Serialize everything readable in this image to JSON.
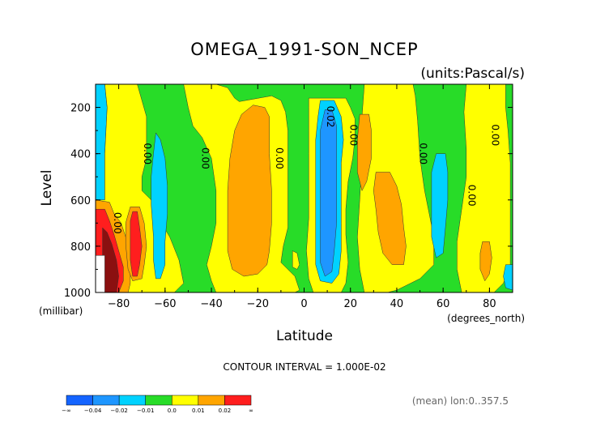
{
  "chart_data": {
    "type": "contour",
    "title": "OMEGA_1991-SON_NCEP",
    "units_label": "(units:Pascal/s)",
    "xlabel": "Latitude",
    "ylabel": "Level",
    "x_unit_label": "(degrees_north)",
    "y_unit_label": "(millibar)",
    "xlim": [
      -90,
      90
    ],
    "ylim": [
      1000,
      100
    ],
    "x_ticks": [
      -80,
      -60,
      -40,
      -20,
      0,
      20,
      40,
      60,
      80
    ],
    "x_tick_labels": [
      "−80",
      "−60",
      "−40",
      "−20",
      "0",
      "20",
      "40",
      "60",
      "80"
    ],
    "y_ticks": [
      200,
      400,
      600,
      800,
      1000
    ],
    "y_tick_labels": [
      "200",
      "400",
      "600",
      "800",
      "1000"
    ],
    "contour_interval_text": "CONTOUR INTERVAL = 1.000E-02",
    "footer_text": "(mean) lon:0..357.5",
    "colorbar": {
      "levels": [
        "−∞",
        "−0.04",
        "−0.02",
        "−0.01",
        "0.0",
        "0.01",
        "0.02",
        "∞"
      ],
      "colors": [
        "#1464ff",
        "#1e96ff",
        "#00d2ff",
        "#28dc28",
        "#ffff00",
        "#ffa500",
        "#ff1e1e"
      ]
    },
    "contour_labels": [
      {
        "text": "0.00",
        "lat": -69,
        "lev": 400
      },
      {
        "text": "0.00",
        "lat": -44,
        "lev": 420
      },
      {
        "text": "0.00",
        "lat": -12,
        "lev": 420
      },
      {
        "text": "0.02",
        "lat": 10,
        "lev": 240
      },
      {
        "text": "0.00",
        "lat": 20,
        "lev": 320
      },
      {
        "text": "0.00",
        "lat": 50,
        "lev": 400
      },
      {
        "text": "0.00",
        "lat": 71,
        "lev": 580
      },
      {
        "text": "0.00",
        "lat": 81,
        "lev": 320
      },
      {
        "text": "0.00",
        "lat": -82,
        "lev": 700
      }
    ],
    "regions": [
      {
        "color": "#28dc28",
        "pts": [
          [
            -90,
            100
          ],
          [
            90,
            100
          ],
          [
            90,
            1000
          ],
          [
            -90,
            1000
          ]
        ]
      },
      {
        "color": "#00d2ff",
        "pts": [
          [
            -90,
            100
          ],
          [
            -86,
            100
          ],
          [
            -85,
            200
          ],
          [
            -86,
            400
          ],
          [
            -86,
            600
          ],
          [
            -90,
            600
          ]
        ]
      },
      {
        "color": "#ffff00",
        "pts": [
          [
            -86,
            100
          ],
          [
            -72,
            100
          ],
          [
            -68,
            240
          ],
          [
            -68,
            420
          ],
          [
            -70,
            500
          ],
          [
            -70,
            560
          ],
          [
            -66,
            600
          ],
          [
            -64,
            660
          ],
          [
            -58,
            760
          ],
          [
            -54,
            860
          ],
          [
            -52,
            960
          ],
          [
            -56,
            1000
          ],
          [
            -90,
            1000
          ],
          [
            -90,
            600
          ],
          [
            -86,
            600
          ],
          [
            -86,
            400
          ],
          [
            -85,
            200
          ]
        ]
      },
      {
        "color": "#00d2ff",
        "pts": [
          [
            -64,
            310
          ],
          [
            -62,
            340
          ],
          [
            -60,
            420
          ],
          [
            -59,
            540
          ],
          [
            -59,
            660
          ],
          [
            -60,
            780
          ],
          [
            -60,
            880
          ],
          [
            -62,
            940
          ],
          [
            -64,
            940
          ],
          [
            -65,
            860
          ],
          [
            -65,
            760
          ],
          [
            -66,
            620
          ],
          [
            -66,
            500
          ],
          [
            -65,
            400
          ]
        ]
      },
      {
        "color": "#ffa500",
        "pts": [
          [
            -90,
            600
          ],
          [
            -84,
            610
          ],
          [
            -82,
            660
          ],
          [
            -79,
            700
          ],
          [
            -77,
            760
          ],
          [
            -76,
            830
          ],
          [
            -75,
            880
          ],
          [
            -75,
            960
          ],
          [
            -76,
            1000
          ],
          [
            -90,
            1000
          ]
        ]
      },
      {
        "color": "#ff1e1e",
        "pts": [
          [
            -90,
            640
          ],
          [
            -86,
            640
          ],
          [
            -84,
            690
          ],
          [
            -82,
            750
          ],
          [
            -80,
            820
          ],
          [
            -78,
            890
          ],
          [
            -78,
            950
          ],
          [
            -80,
            1000
          ],
          [
            -90,
            1000
          ]
        ]
      },
      {
        "color": "#8b1010",
        "pts": [
          [
            -87,
            720
          ],
          [
            -85,
            740
          ],
          [
            -83,
            790
          ],
          [
            -81,
            860
          ],
          [
            -80,
            930
          ],
          [
            -81,
            1000
          ],
          [
            -87,
            1000
          ]
        ]
      },
      {
        "color": "#ffffff",
        "pts": [
          [
            -90,
            840
          ],
          [
            -86,
            840
          ],
          [
            -86,
            1000
          ],
          [
            -90,
            1000
          ]
        ]
      },
      {
        "color": "#ffa500",
        "pts": [
          [
            -75,
            630
          ],
          [
            -71,
            630
          ],
          [
            -69,
            700
          ],
          [
            -68,
            800
          ],
          [
            -69,
            880
          ],
          [
            -70,
            940
          ],
          [
            -74,
            950
          ],
          [
            -76,
            900
          ],
          [
            -77,
            790
          ],
          [
            -77,
            700
          ]
        ]
      },
      {
        "color": "#ff1e1e",
        "pts": [
          [
            -74,
            650
          ],
          [
            -72,
            650
          ],
          [
            -71,
            720
          ],
          [
            -70,
            800
          ],
          [
            -71,
            880
          ],
          [
            -72,
            930
          ],
          [
            -74,
            930
          ],
          [
            -75,
            860
          ],
          [
            -75,
            760
          ],
          [
            -75,
            690
          ]
        ]
      },
      {
        "color": "#ffff00",
        "pts": [
          [
            -52,
            100
          ],
          [
            -38,
            100
          ],
          [
            -33,
            115
          ],
          [
            -30,
            160
          ],
          [
            -28,
            175
          ],
          [
            -14,
            150
          ],
          [
            -10,
            170
          ],
          [
            -8,
            220
          ],
          [
            -7,
            300
          ],
          [
            -7,
            420
          ],
          [
            -7,
            560
          ],
          [
            -7,
            720
          ],
          [
            -9,
            800
          ],
          [
            -10,
            870
          ],
          [
            -4,
            930
          ],
          [
            -2,
            990
          ],
          [
            -4,
            1000
          ],
          [
            -38,
            1000
          ],
          [
            -40,
            950
          ],
          [
            -42,
            880
          ],
          [
            -40,
            800
          ],
          [
            -38,
            700
          ],
          [
            -38,
            560
          ],
          [
            -40,
            420
          ],
          [
            -44,
            330
          ],
          [
            -48,
            280
          ],
          [
            -50,
            200
          ]
        ]
      },
      {
        "color": "#ffa500",
        "pts": [
          [
            -22,
            190
          ],
          [
            -17,
            200
          ],
          [
            -15,
            240
          ],
          [
            -15,
            400
          ],
          [
            -14,
            560
          ],
          [
            -14,
            700
          ],
          [
            -15,
            820
          ],
          [
            -16,
            880
          ],
          [
            -20,
            920
          ],
          [
            -26,
            930
          ],
          [
            -31,
            900
          ],
          [
            -33,
            820
          ],
          [
            -33,
            700
          ],
          [
            -33,
            560
          ],
          [
            -32,
            420
          ],
          [
            -30,
            300
          ],
          [
            -27,
            230
          ]
        ]
      },
      {
        "color": "#ffff00",
        "pts": [
          [
            -5,
            820
          ],
          [
            -3,
            830
          ],
          [
            -2,
            880
          ],
          [
            -3,
            900
          ],
          [
            -5,
            890
          ]
        ]
      },
      {
        "color": "#ffff00",
        "pts": [
          [
            2,
            160
          ],
          [
            18,
            160
          ],
          [
            20,
            200
          ],
          [
            22,
            250
          ],
          [
            22,
            330
          ],
          [
            21,
            420
          ],
          [
            19,
            520
          ],
          [
            18,
            640
          ],
          [
            18,
            750
          ],
          [
            19,
            870
          ],
          [
            18,
            960
          ],
          [
            16,
            1000
          ],
          [
            4,
            1000
          ],
          [
            2,
            940
          ],
          [
            1,
            820
          ],
          [
            2,
            680
          ],
          [
            2,
            520
          ],
          [
            2,
            400
          ],
          [
            2,
            300
          ],
          [
            2,
            200
          ]
        ]
      },
      {
        "color": "#00d2ff",
        "pts": [
          [
            7,
            170
          ],
          [
            13,
            170
          ],
          [
            16,
            240
          ],
          [
            17,
            340
          ],
          [
            16,
            440
          ],
          [
            16,
            560
          ],
          [
            16,
            700
          ],
          [
            16,
            820
          ],
          [
            15,
            920
          ],
          [
            12,
            960
          ],
          [
            7,
            950
          ],
          [
            5,
            880
          ],
          [
            5,
            760
          ],
          [
            5,
            620
          ],
          [
            5,
            480
          ],
          [
            5,
            340
          ],
          [
            6,
            240
          ]
        ]
      },
      {
        "color": "#1e96ff",
        "pts": [
          [
            9,
            210
          ],
          [
            12,
            210
          ],
          [
            14,
            280
          ],
          [
            14,
            420
          ],
          [
            14,
            560
          ],
          [
            14,
            700
          ],
          [
            13,
            820
          ],
          [
            12,
            910
          ],
          [
            9,
            930
          ],
          [
            7,
            870
          ],
          [
            7,
            730
          ],
          [
            7,
            580
          ],
          [
            7,
            420
          ],
          [
            7,
            300
          ]
        ]
      },
      {
        "color": "#ffff00",
        "pts": [
          [
            26,
            100
          ],
          [
            47,
            100
          ],
          [
            48,
            150
          ],
          [
            49,
            260
          ],
          [
            50,
            420
          ],
          [
            52,
            560
          ],
          [
            54,
            660
          ],
          [
            56,
            760
          ],
          [
            56,
            880
          ],
          [
            50,
            940
          ],
          [
            46,
            960
          ],
          [
            40,
            990
          ],
          [
            36,
            1000
          ],
          [
            26,
            1000
          ],
          [
            24,
            900
          ],
          [
            23,
            760
          ],
          [
            24,
            600
          ],
          [
            25,
            420
          ],
          [
            25,
            240
          ]
        ]
      },
      {
        "color": "#ffa500",
        "pts": [
          [
            24,
            230
          ],
          [
            28,
            230
          ],
          [
            29,
            300
          ],
          [
            29,
            420
          ],
          [
            27,
            520
          ],
          [
            25,
            560
          ],
          [
            23,
            480
          ],
          [
            23,
            340
          ]
        ]
      },
      {
        "color": "#ffa500",
        "pts": [
          [
            31,
            480
          ],
          [
            37,
            480
          ],
          [
            40,
            540
          ],
          [
            42,
            620
          ],
          [
            43,
            720
          ],
          [
            44,
            800
          ],
          [
            43,
            880
          ],
          [
            38,
            880
          ],
          [
            34,
            830
          ],
          [
            32,
            740
          ],
          [
            31,
            640
          ],
          [
            30,
            560
          ]
        ]
      },
      {
        "color": "#00d2ff",
        "pts": [
          [
            57,
            400
          ],
          [
            61,
            400
          ],
          [
            62,
            480
          ],
          [
            62,
            600
          ],
          [
            61,
            720
          ],
          [
            60,
            830
          ],
          [
            57,
            850
          ],
          [
            55,
            760
          ],
          [
            55,
            600
          ],
          [
            55,
            480
          ]
        ]
      },
      {
        "color": "#ffff00",
        "pts": [
          [
            70,
            100
          ],
          [
            87,
            100
          ],
          [
            87,
            200
          ],
          [
            88,
            300
          ],
          [
            89,
            440
          ],
          [
            89,
            600
          ],
          [
            89,
            760
          ],
          [
            89,
            880
          ],
          [
            86,
            960
          ],
          [
            82,
            1000
          ],
          [
            68,
            1000
          ],
          [
            66,
            900
          ],
          [
            66,
            780
          ],
          [
            68,
            640
          ],
          [
            70,
            500
          ],
          [
            70,
            380
          ],
          [
            69,
            220
          ]
        ]
      },
      {
        "color": "#ffa500",
        "pts": [
          [
            77,
            780
          ],
          [
            80,
            780
          ],
          [
            81,
            850
          ],
          [
            80,
            920
          ],
          [
            78,
            950
          ],
          [
            76,
            900
          ],
          [
            76,
            830
          ]
        ]
      },
      {
        "color": "#00d2ff",
        "pts": [
          [
            87,
            880
          ],
          [
            90,
            880
          ],
          [
            90,
            990
          ],
          [
            87,
            980
          ],
          [
            86,
            930
          ]
        ]
      }
    ]
  }
}
